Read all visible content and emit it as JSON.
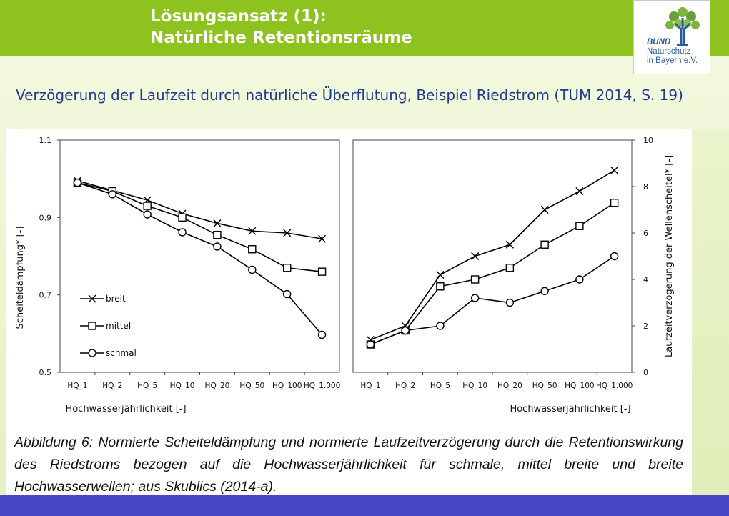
{
  "slide": {
    "title_line1": "Lösungsansatz (1):",
    "title_line2": "Natürliche Retentionsräume",
    "subtitle": "Verzögerung der Laufzeit durch natürliche Überflutung, Beispiel Riedstrom (TUM 2014, S. 19)",
    "caption": "Abbildung 6: Normierte Scheiteldämpfung und normierte Laufzeitverzögerung durch die Retentionswirkung des Riedstroms bezogen auf die Hochwasserjährlichkeit für schmale, mittel breite und breite Hochwasserwellen; aus Skublics (2014-a).",
    "colors": {
      "header_green": "#8dc21f",
      "subtitle_blue": "#1f3a93",
      "bottom_bar": "#4a47c4"
    }
  },
  "logo": {
    "bund": "BUND",
    "line2": "Naturschutz",
    "line3": "in Bayern e.V.",
    "icon": "tree-icon"
  },
  "chart_data": [
    {
      "type": "line",
      "categories": [
        "HQ_1",
        "HQ_2",
        "HQ_5",
        "HQ_10",
        "HQ_20",
        "HQ_50",
        "HQ_100",
        "HQ_1.000"
      ],
      "xlabel": "Hochwasserjährlichkeit [-]",
      "ylabel": "Scheiteldämpfung* [-]",
      "ylim": [
        0.5,
        1.1
      ],
      "yticks": [
        "1.1",
        "0.9",
        "0.7",
        "0.5"
      ],
      "legend": "left",
      "series": [
        {
          "name": "breit",
          "marker": "x",
          "values": [
            0.995,
            0.97,
            0.945,
            0.91,
            0.885,
            0.865,
            0.86,
            0.845
          ]
        },
        {
          "name": "mittel",
          "marker": "square",
          "values": [
            0.99,
            0.968,
            0.93,
            0.9,
            0.855,
            0.818,
            0.77,
            0.76
          ]
        },
        {
          "name": "schmal",
          "marker": "circle",
          "values": [
            0.99,
            0.96,
            0.908,
            0.862,
            0.825,
            0.765,
            0.702,
            0.597
          ]
        }
      ]
    },
    {
      "type": "line",
      "categories": [
        "HQ_1",
        "HQ_2",
        "HQ_5",
        "HQ_10",
        "HQ_20",
        "HQ_50",
        "HQ_100",
        "HQ_1.000"
      ],
      "xlabel": "Hochwasserjährlichkeit [-]",
      "ylabel": "Laufzeitverzögerung der Wellenscheitel* [-]",
      "ylim": [
        0,
        10
      ],
      "yticks": [
        "10",
        "8",
        "6",
        "4",
        "2",
        "0"
      ],
      "y_axis_side": "right",
      "series": [
        {
          "name": "breit",
          "marker": "x",
          "values": [
            1.4,
            2.0,
            4.2,
            5.0,
            5.5,
            7.0,
            7.8,
            8.7
          ]
        },
        {
          "name": "mittel",
          "marker": "square",
          "values": [
            1.2,
            1.8,
            3.7,
            4.0,
            4.5,
            5.5,
            6.3,
            7.3
          ]
        },
        {
          "name": "schmal",
          "marker": "circle",
          "values": [
            1.2,
            1.8,
            2.0,
            3.2,
            3.0,
            3.5,
            4.0,
            5.0
          ]
        }
      ]
    }
  ]
}
